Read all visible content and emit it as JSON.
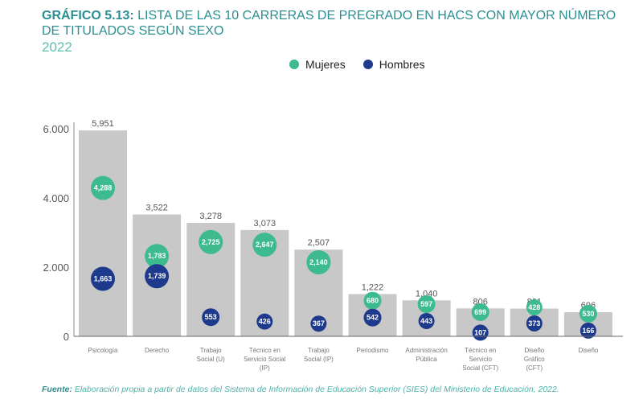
{
  "title": {
    "prefix": "GRÁFICO 5.13:",
    "text": "LISTA DE LAS 10 CARRERAS DE PREGRADO EN HACS CON MAYOR NÚMERO DE TITULADOS SEGÚN SEXO",
    "year": "2022"
  },
  "footer": {
    "label": "Fuente:",
    "text": "Elaboración propia a partir de datos del Sistema de Información de Educación Superior (SIES) del Ministerio de Educación, 2022."
  },
  "colors": {
    "mujeres": "#3dbb8f",
    "hombres": "#1e3a8c",
    "bar": "#c8c8c8"
  },
  "chart_data": {
    "type": "bar",
    "title": "Lista de las 10 carreras de pregrado en HACS con mayor número de titulados según sexo",
    "categories": [
      [
        "Psicología"
      ],
      [
        "Derecho"
      ],
      [
        "Trabajo",
        "Social (U)"
      ],
      [
        "Técnico en",
        "Servicio Social",
        "(IP)"
      ],
      [
        "Trabajo",
        "Social (IP)"
      ],
      [
        "Periodismo"
      ],
      [
        "Administración",
        "Pública"
      ],
      [
        "Técnico en",
        "Servicio",
        "Social (CFT)"
      ],
      [
        "Diseño",
        "Gráfico",
        "(CFT)"
      ],
      [
        "Diseño"
      ]
    ],
    "totals": [
      5951,
      3522,
      3278,
      3073,
      2507,
      1222,
      1040,
      806,
      801,
      696
    ],
    "total_labels": [
      "5,951",
      "3,522",
      "3,278",
      "3,073",
      "2,507",
      "1,222",
      "1,040",
      "806",
      "801",
      "696"
    ],
    "series": [
      {
        "name": "Mujeres",
        "values": [
          4288,
          1783,
          2725,
          2647,
          2140,
          680,
          597,
          699,
          428,
          530
        ],
        "labels": [
          "4,288",
          "1,783",
          "2,725",
          "2,647",
          "2,140",
          "680",
          "597",
          "699",
          "428",
          "530"
        ]
      },
      {
        "name": "Hombres",
        "values": [
          1663,
          1739,
          553,
          426,
          367,
          542,
          443,
          107,
          373,
          166
        ],
        "labels": [
          "1,663",
          "1,739",
          "553",
          "426",
          "367",
          "542",
          "443",
          "107",
          "373",
          "166"
        ]
      }
    ],
    "yticks": [
      0,
      2000,
      4000,
      6000
    ],
    "ytick_labels": [
      "0",
      "2.000",
      "4.000",
      "6.000"
    ],
    "ylim": [
      0,
      6000
    ],
    "legend": "top-center"
  }
}
